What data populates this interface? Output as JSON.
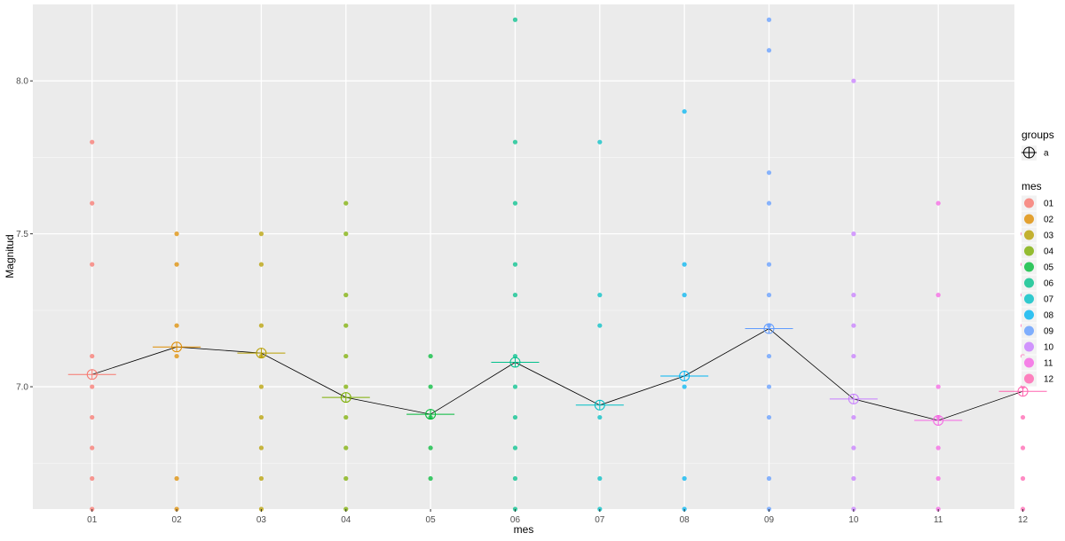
{
  "chart_data": {
    "type": "scatter",
    "xlabel": "mes",
    "ylabel": "Magnitud",
    "categories": [
      "01",
      "02",
      "03",
      "04",
      "05",
      "06",
      "07",
      "08",
      "09",
      "10",
      "11",
      "12"
    ],
    "ylim": [
      6.6,
      8.25
    ],
    "yticks": [
      "7.0",
      "7.5",
      "8.0"
    ],
    "grid": true,
    "legend_position": "right",
    "colors": [
      "#F8766D",
      "#DE8C00",
      "#B79F00",
      "#7CAE00",
      "#00BA38",
      "#00C08B",
      "#00BFC4",
      "#00B4F0",
      "#619CFF",
      "#C77CFF",
      "#F564E3",
      "#FF64B0"
    ],
    "points": [
      [
        7.8,
        7.6,
        7.4,
        7.1,
        7.0,
        6.9,
        6.8,
        6.7,
        6.6
      ],
      [
        7.5,
        7.4,
        7.2,
        7.1,
        6.7,
        6.6
      ],
      [
        7.5,
        7.4,
        7.2,
        7.1,
        7.0,
        6.9,
        6.8,
        6.7,
        6.6
      ],
      [
        7.6,
        7.5,
        7.3,
        7.2,
        7.1,
        7.0,
        6.9,
        6.8,
        6.7,
        6.6
      ],
      [
        7.1,
        7.0,
        6.9,
        6.8,
        6.7
      ],
      [
        8.2,
        7.8,
        7.6,
        7.4,
        7.3,
        7.1,
        7.0,
        6.9,
        6.8,
        6.7,
        6.6
      ],
      [
        7.8,
        7.3,
        7.2,
        6.9,
        6.7,
        6.6
      ],
      [
        7.9,
        7.4,
        7.3,
        7.0,
        6.7,
        6.6
      ],
      [
        8.2,
        8.1,
        7.7,
        7.6,
        7.4,
        7.3,
        7.2,
        7.1,
        7.0,
        6.9,
        6.7,
        6.6
      ],
      [
        8.0,
        7.5,
        7.3,
        7.2,
        7.1,
        6.9,
        6.8,
        6.7,
        6.6
      ],
      [
        7.6,
        7.3,
        7.0,
        6.9,
        6.8,
        6.7,
        6.6
      ],
      [
        7.5,
        7.4,
        7.3,
        7.2,
        7.1,
        7.0,
        6.9,
        6.8,
        6.7,
        6.6
      ]
    ],
    "means": [
      7.04,
      7.13,
      7.11,
      6.965,
      6.91,
      7.08,
      6.94,
      7.035,
      7.19,
      6.96,
      6.89,
      6.985
    ],
    "legend": {
      "groups_title": "groups",
      "groups_items": [
        "a"
      ],
      "mes_title": "mes",
      "mes_items": [
        "01",
        "02",
        "03",
        "04",
        "05",
        "06",
        "07",
        "08",
        "09",
        "10",
        "11",
        "12"
      ]
    }
  }
}
